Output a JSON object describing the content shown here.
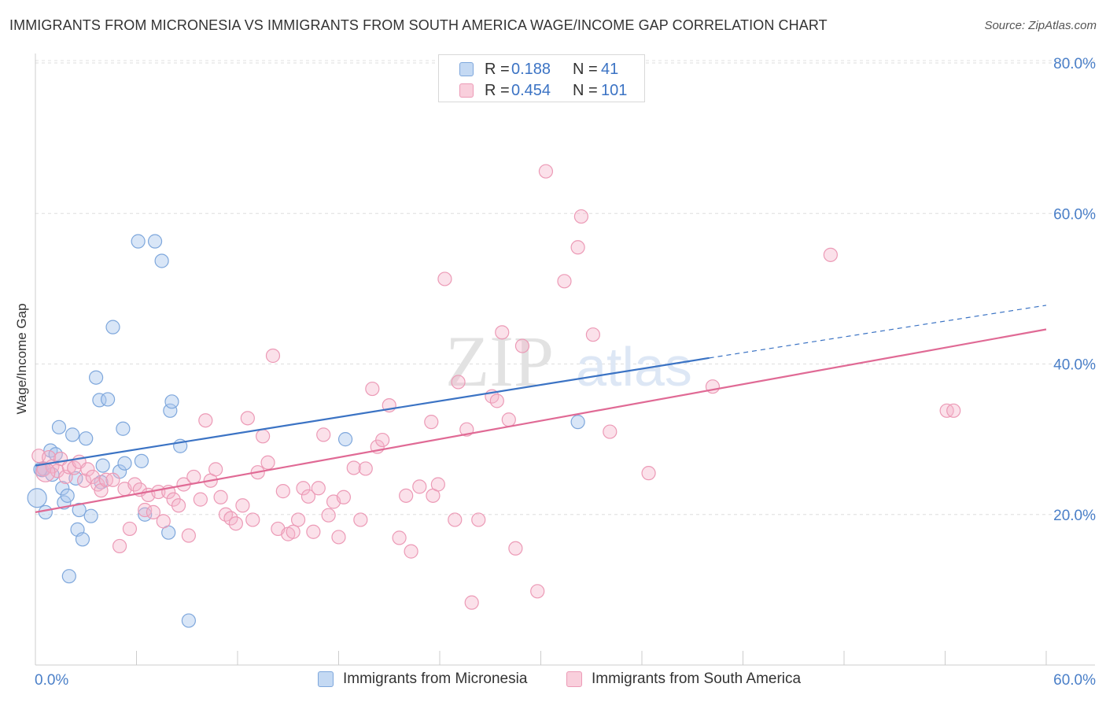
{
  "title": "IMMIGRANTS FROM MICRONESIA VS IMMIGRANTS FROM SOUTH AMERICA WAGE/INCOME GAP CORRELATION CHART",
  "source": "Source: ZipAtlas.com",
  "watermark": {
    "zip": "ZIP",
    "atlas": "atlas"
  },
  "colors": {
    "blue": "#3b73c4",
    "blue_fill": "#aac8ee",
    "pink": "#e06a95",
    "pink_fill": "#f5b5ca",
    "grid": "#dddddd",
    "tick_label": "#4a7fc8"
  },
  "legend": {
    "rows": [
      {
        "r_label": "R =",
        "r_value": "0.188",
        "n_label": "N =",
        "n_value": "41"
      },
      {
        "r_label": "R =",
        "r_value": "0.454",
        "n_label": "N =",
        "n_value": "101"
      }
    ]
  },
  "bottom_legend": [
    "Immigrants from Micronesia",
    "Immigrants from South America"
  ],
  "chart_data": {
    "type": "scatter",
    "title": "IMMIGRANTS FROM MICRONESIA VS IMMIGRANTS FROM SOUTH AMERICA WAGE/INCOME GAP CORRELATION CHART",
    "xlabel": "",
    "ylabel": "Wage/Income Gap",
    "xlim": [
      0,
      60
    ],
    "ylim": [
      0,
      80
    ],
    "x_tick_labels": [
      "0.0%",
      "60.0%"
    ],
    "y_ticks": [
      20,
      40,
      60,
      80
    ],
    "y_tick_labels": [
      "20.0%",
      "40.0%",
      "60.0%",
      "80.0%"
    ],
    "grid": true,
    "legend_position": "top-center",
    "series": [
      {
        "name": "Immigrants from Micronesia",
        "color": "#3b73c4",
        "R": 0.188,
        "N": 41,
        "trend": {
          "x_start": 0,
          "y_start": 26.5,
          "x_end": 40,
          "y_end": 40.8,
          "dashed_x_end": 60,
          "dashed_y_end": 47.8
        },
        "points": [
          [
            0.1,
            22.2
          ],
          [
            0.4,
            25.9
          ],
          [
            0.5,
            26.1
          ],
          [
            0.6,
            20.3
          ],
          [
            0.9,
            28.5
          ],
          [
            1.0,
            25.3
          ],
          [
            1.2,
            28.0
          ],
          [
            1.4,
            31.6
          ],
          [
            1.6,
            23.5
          ],
          [
            1.7,
            21.6
          ],
          [
            1.9,
            22.5
          ],
          [
            2.0,
            11.8
          ],
          [
            2.2,
            30.6
          ],
          [
            2.4,
            24.8
          ],
          [
            2.5,
            18.0
          ],
          [
            2.6,
            20.6
          ],
          [
            2.8,
            16.7
          ],
          [
            3.0,
            30.1
          ],
          [
            3.3,
            19.8
          ],
          [
            3.6,
            38.2
          ],
          [
            3.8,
            35.2
          ],
          [
            3.9,
            24.3
          ],
          [
            4.0,
            26.5
          ],
          [
            4.3,
            35.3
          ],
          [
            4.6,
            44.9
          ],
          [
            5.0,
            25.7
          ],
          [
            5.2,
            31.4
          ],
          [
            5.3,
            26.8
          ],
          [
            6.1,
            56.3
          ],
          [
            6.3,
            27.1
          ],
          [
            6.5,
            20.0
          ],
          [
            7.1,
            56.3
          ],
          [
            7.5,
            53.7
          ],
          [
            7.9,
            17.6
          ],
          [
            8.0,
            33.8
          ],
          [
            8.1,
            35.0
          ],
          [
            8.6,
            29.1
          ],
          [
            9.1,
            5.9
          ],
          [
            18.4,
            30.0
          ],
          [
            32.2,
            32.3
          ],
          [
            0.3,
            26.0
          ]
        ]
      },
      {
        "name": "Immigrants from South America",
        "color": "#e06a95",
        "R": 0.454,
        "N": 101,
        "trend": {
          "x_start": 0,
          "y_start": 20.3,
          "x_end": 60,
          "y_end": 44.6
        },
        "points": [
          [
            0.2,
            27.8
          ],
          [
            0.5,
            26.0
          ],
          [
            0.8,
            27.6
          ],
          [
            1.0,
            26.4
          ],
          [
            1.3,
            25.8
          ],
          [
            1.5,
            27.4
          ],
          [
            1.8,
            25.0
          ],
          [
            2.0,
            26.3
          ],
          [
            2.3,
            26.2
          ],
          [
            2.6,
            27.0
          ],
          [
            2.9,
            24.5
          ],
          [
            3.1,
            26.0
          ],
          [
            3.4,
            25.0
          ],
          [
            3.7,
            24.0
          ],
          [
            3.9,
            23.2
          ],
          [
            4.2,
            24.6
          ],
          [
            4.6,
            24.6
          ],
          [
            5.0,
            15.8
          ],
          [
            5.3,
            23.4
          ],
          [
            5.6,
            18.1
          ],
          [
            5.9,
            24.0
          ],
          [
            6.2,
            23.3
          ],
          [
            6.5,
            20.6
          ],
          [
            6.7,
            22.6
          ],
          [
            7.0,
            20.3
          ],
          [
            7.3,
            23.0
          ],
          [
            7.6,
            19.1
          ],
          [
            7.9,
            23.0
          ],
          [
            8.2,
            22.0
          ],
          [
            8.5,
            21.2
          ],
          [
            8.8,
            24.0
          ],
          [
            9.1,
            17.2
          ],
          [
            9.4,
            25.0
          ],
          [
            9.8,
            22.0
          ],
          [
            10.1,
            32.5
          ],
          [
            10.4,
            24.5
          ],
          [
            10.7,
            26.0
          ],
          [
            11.0,
            22.3
          ],
          [
            11.3,
            20.0
          ],
          [
            11.6,
            19.5
          ],
          [
            11.9,
            18.8
          ],
          [
            12.3,
            21.2
          ],
          [
            12.6,
            32.8
          ],
          [
            12.9,
            19.3
          ],
          [
            13.2,
            25.6
          ],
          [
            13.5,
            30.4
          ],
          [
            13.8,
            26.9
          ],
          [
            14.1,
            41.1
          ],
          [
            14.4,
            18.1
          ],
          [
            14.7,
            23.1
          ],
          [
            15.0,
            17.4
          ],
          [
            15.3,
            17.7
          ],
          [
            15.6,
            19.3
          ],
          [
            15.9,
            23.5
          ],
          [
            16.2,
            22.4
          ],
          [
            16.5,
            17.7
          ],
          [
            16.8,
            23.5
          ],
          [
            17.1,
            30.6
          ],
          [
            17.4,
            19.9
          ],
          [
            17.7,
            21.7
          ],
          [
            18.0,
            17.0
          ],
          [
            18.3,
            22.3
          ],
          [
            18.9,
            26.2
          ],
          [
            19.3,
            19.3
          ],
          [
            19.6,
            26.1
          ],
          [
            20.0,
            36.7
          ],
          [
            20.3,
            29.0
          ],
          [
            20.6,
            29.9
          ],
          [
            21.0,
            34.5
          ],
          [
            21.6,
            16.9
          ],
          [
            22.0,
            22.5
          ],
          [
            22.3,
            15.1
          ],
          [
            22.8,
            23.7
          ],
          [
            23.5,
            32.3
          ],
          [
            23.6,
            22.5
          ],
          [
            23.9,
            24.0
          ],
          [
            24.3,
            51.3
          ],
          [
            24.9,
            19.3
          ],
          [
            25.1,
            37.6
          ],
          [
            25.6,
            31.3
          ],
          [
            25.9,
            8.3
          ],
          [
            26.3,
            19.3
          ],
          [
            27.1,
            35.7
          ],
          [
            27.4,
            35.1
          ],
          [
            27.7,
            44.2
          ],
          [
            28.1,
            32.6
          ],
          [
            28.5,
            15.5
          ],
          [
            28.9,
            42.4
          ],
          [
            29.8,
            9.8
          ],
          [
            30.3,
            65.6
          ],
          [
            31.4,
            51.0
          ],
          [
            32.2,
            55.5
          ],
          [
            32.4,
            59.6
          ],
          [
            33.1,
            43.9
          ],
          [
            34.1,
            31.0
          ],
          [
            36.4,
            25.5
          ],
          [
            40.2,
            37.0
          ],
          [
            47.2,
            54.5
          ],
          [
            54.1,
            33.8
          ],
          [
            54.5,
            33.8
          ],
          [
            0.6,
            25.6
          ]
        ]
      }
    ]
  }
}
